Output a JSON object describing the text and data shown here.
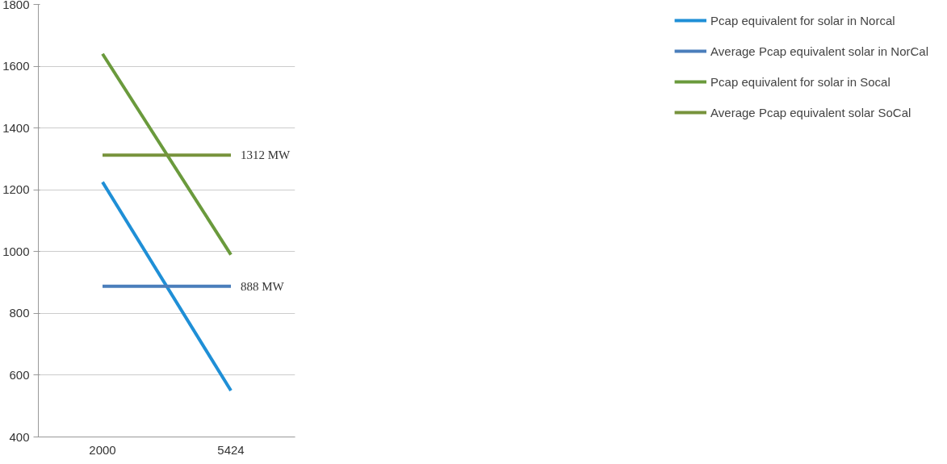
{
  "chart_data": {
    "type": "line",
    "categories": [
      "2000",
      "5424"
    ],
    "series": [
      {
        "name": "Pcap equivalent for solar in Norcal",
        "color": "#1f8fd6",
        "values": [
          1225,
          550
        ]
      },
      {
        "name": "Average Pcap equivalent solar in NorCal",
        "color": "#4a7ebb",
        "values": [
          888,
          888
        ],
        "value_labels": [
          null,
          "888 MW"
        ]
      },
      {
        "name": "Pcap equivalent for solar in Socal",
        "color": "#6a9a3c",
        "values": [
          1640,
          990
        ]
      },
      {
        "name": "Average Pcap equivalent solar SoCal",
        "color": "#77933c",
        "values": [
          1312,
          1312
        ],
        "value_labels": [
          null,
          "1312 MW"
        ]
      }
    ],
    "ylim": [
      400,
      1800
    ],
    "yticks": [
      400,
      600,
      800,
      1000,
      1200,
      1400,
      1600,
      1800
    ],
    "grid": "y",
    "legend": "right",
    "marker": "none",
    "line_style": "solid"
  }
}
